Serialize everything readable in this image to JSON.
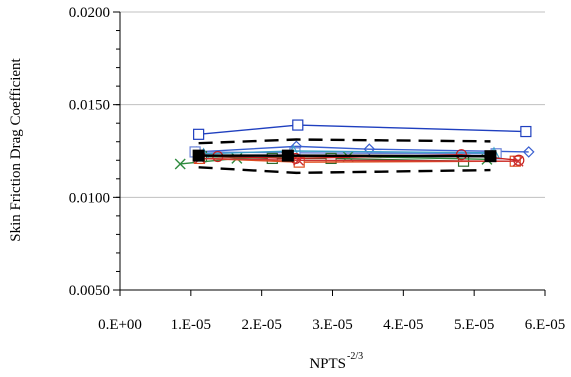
{
  "chart_data": {
    "type": "line",
    "xlabel": "NPTS",
    "xlabel_superscript": "-2/3",
    "ylabel": "Skin Friction Drag Coefficient",
    "xlim": [
      0,
      6e-05
    ],
    "ylim": [
      0.005,
      0.02
    ],
    "x_tick_labels": [
      "0.E+00",
      "1.E-05",
      "2.E-05",
      "3.E-05",
      "4.E-05",
      "5.E-05",
      "6.E-05"
    ],
    "y_tick_labels": [
      "0.0050",
      "0.0100",
      "0.0150",
      "0.0200"
    ],
    "x_ticks": [
      0,
      1e-05,
      2e-05,
      3e-05,
      4e-05,
      5e-05,
      6e-05
    ],
    "y_ticks": [
      0.005,
      0.01,
      0.015,
      0.02
    ],
    "y_minor_step": 0.001,
    "grid": "horizontal major",
    "legend": "none",
    "series": [
      {
        "color": "#1f3fbf",
        "marker": "square-open",
        "dash": "solid",
        "x": [
          1.11e-05,
          2.51e-05,
          5.73e-05
        ],
        "y": [
          0.0134,
          0.0139,
          0.01355
        ]
      },
      {
        "color": "#3a5fd0",
        "marker": "diamond-open",
        "dash": "solid",
        "x": [
          1.08e-05,
          2.49e-05,
          3.52e-05,
          5.77e-05
        ],
        "y": [
          0.01245,
          0.01275,
          0.0126,
          0.01245
        ]
      },
      {
        "color": "#6a82d8",
        "marker": "square-open",
        "dash": "solid",
        "x": [
          1.06e-05,
          2.47e-05,
          5.31e-05
        ],
        "y": [
          0.01245,
          0.0124,
          0.01235
        ]
      },
      {
        "color": "#2f6a2f",
        "marker": "square-open",
        "dash": "solid",
        "x": [
          1.15e-05,
          2.15e-05,
          2.98e-05,
          4.85e-05
        ],
        "y": [
          0.0122,
          0.0121,
          0.0121,
          0.01195
        ]
      },
      {
        "color": "#2e8b3e",
        "marker": "x",
        "dash": "solid",
        "x": [
          8.5e-06,
          1.65e-05,
          2.35e-05,
          3.22e-05,
          5.18e-05
        ],
        "y": [
          0.0118,
          0.0121,
          0.0122,
          0.0122,
          0.01205
        ]
      },
      {
        "color": "#3aa0c8",
        "marker": "triangle-open",
        "dash": "solid",
        "x": [
          1.18e-05,
          2.45e-05,
          5.28e-05
        ],
        "y": [
          0.01235,
          0.0125,
          0.0124
        ]
      },
      {
        "color": "#e05020",
        "marker": "square-open",
        "dash": "solid",
        "x": [
          1.12e-05,
          2.53e-05,
          5.58e-05
        ],
        "y": [
          0.0121,
          0.0119,
          0.01195
        ]
      },
      {
        "color": "#c81e1e",
        "marker": "circle-open",
        "dash": "solid",
        "x": [
          1.38e-05,
          2.48e-05,
          4.82e-05,
          5.63e-05
        ],
        "y": [
          0.0122,
          0.0121,
          0.0123,
          0.012
        ]
      },
      {
        "color": "#cc3333",
        "marker": "x",
        "dash": "solid",
        "x": [
          1.13e-05,
          2.52e-05,
          5.62e-05
        ],
        "y": [
          0.0121,
          0.012,
          0.01195
        ]
      },
      {
        "color": "#000000",
        "marker": "square-filled",
        "dash": "solid",
        "width": 2.5,
        "x": [
          1.11e-05,
          2.37e-05,
          5.23e-05
        ],
        "y": [
          0.01225,
          0.01225,
          0.01222
        ]
      },
      {
        "color": "#000000",
        "marker": "none",
        "dash": "long-dash",
        "width": 2.4,
        "x": [
          1.11e-05,
          2.49e-05,
          5.23e-05
        ],
        "y": [
          0.01292,
          0.01312,
          0.01302
        ]
      },
      {
        "color": "#000000",
        "marker": "none",
        "dash": "long-dash",
        "width": 2.4,
        "x": [
          1.11e-05,
          2.49e-05,
          5.23e-05
        ],
        "y": [
          0.01162,
          0.01132,
          0.01147
        ]
      }
    ]
  }
}
